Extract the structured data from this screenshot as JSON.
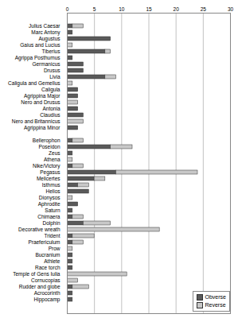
{
  "chart_data": {
    "type": "bar",
    "orientation": "horizontal",
    "stacked": true,
    "grid": true,
    "legend": "bottom-right",
    "categories": [
      "Julius Caesar",
      "Marc Antony",
      "Augustus",
      "Gaius and Lucius",
      "Tiberius",
      "Agrippa Posthumus",
      "Germanicus",
      "Drusus",
      "Livia",
      "Caligula and Gemellus",
      "Caligula",
      "Agrippina Major",
      "Nero and Drusus",
      "Antonia",
      "Claudius",
      "Nero and Britannicus",
      "Agrippina Minor",
      null,
      "Bellerophon",
      "Poseidon",
      "Zeus",
      "Athena",
      "Nike/Victory",
      "Pegasus",
      "Melicertes",
      "Isthmus",
      "Helios",
      "Dionysos",
      "Aphrodite",
      "Saturn",
      "Chimaera",
      "Dolphin",
      "Decorative wreath",
      "Trident",
      "Praefericulum",
      "Prow",
      "Bucranium",
      "Athlete",
      "Race torch",
      "Temple of Gens Iulia",
      "Cornucopias",
      "Rudder and globe",
      "Acrocorinth",
      "Hippocamp"
    ],
    "series": [
      {
        "name": "Obverse",
        "color": "#5a5a5a",
        "values": [
          1,
          1,
          8,
          0,
          7,
          1,
          3,
          3,
          7,
          0,
          2,
          2,
          0,
          2,
          3,
          0,
          2,
          0,
          1,
          8,
          1,
          0,
          1,
          9,
          5,
          2,
          4,
          0,
          2,
          1,
          1,
          3,
          0,
          1,
          1,
          0,
          1,
          1,
          1,
          0,
          0,
          1,
          1,
          1
        ]
      },
      {
        "name": "Reverse",
        "color": "#c8c8c8",
        "values": [
          2,
          0,
          0,
          1,
          1,
          0,
          0,
          0,
          2,
          1,
          0,
          0,
          2,
          0,
          0,
          3,
          0,
          0,
          2,
          4,
          0,
          1,
          2,
          15,
          2,
          2,
          0,
          1,
          0,
          0,
          2,
          5,
          17,
          4,
          2,
          1,
          0,
          0,
          0,
          11,
          2,
          3,
          0,
          0
        ]
      }
    ],
    "xlim": [
      0,
      30
    ],
    "xticks": [
      0,
      5,
      10,
      15,
      20,
      25,
      30
    ]
  }
}
